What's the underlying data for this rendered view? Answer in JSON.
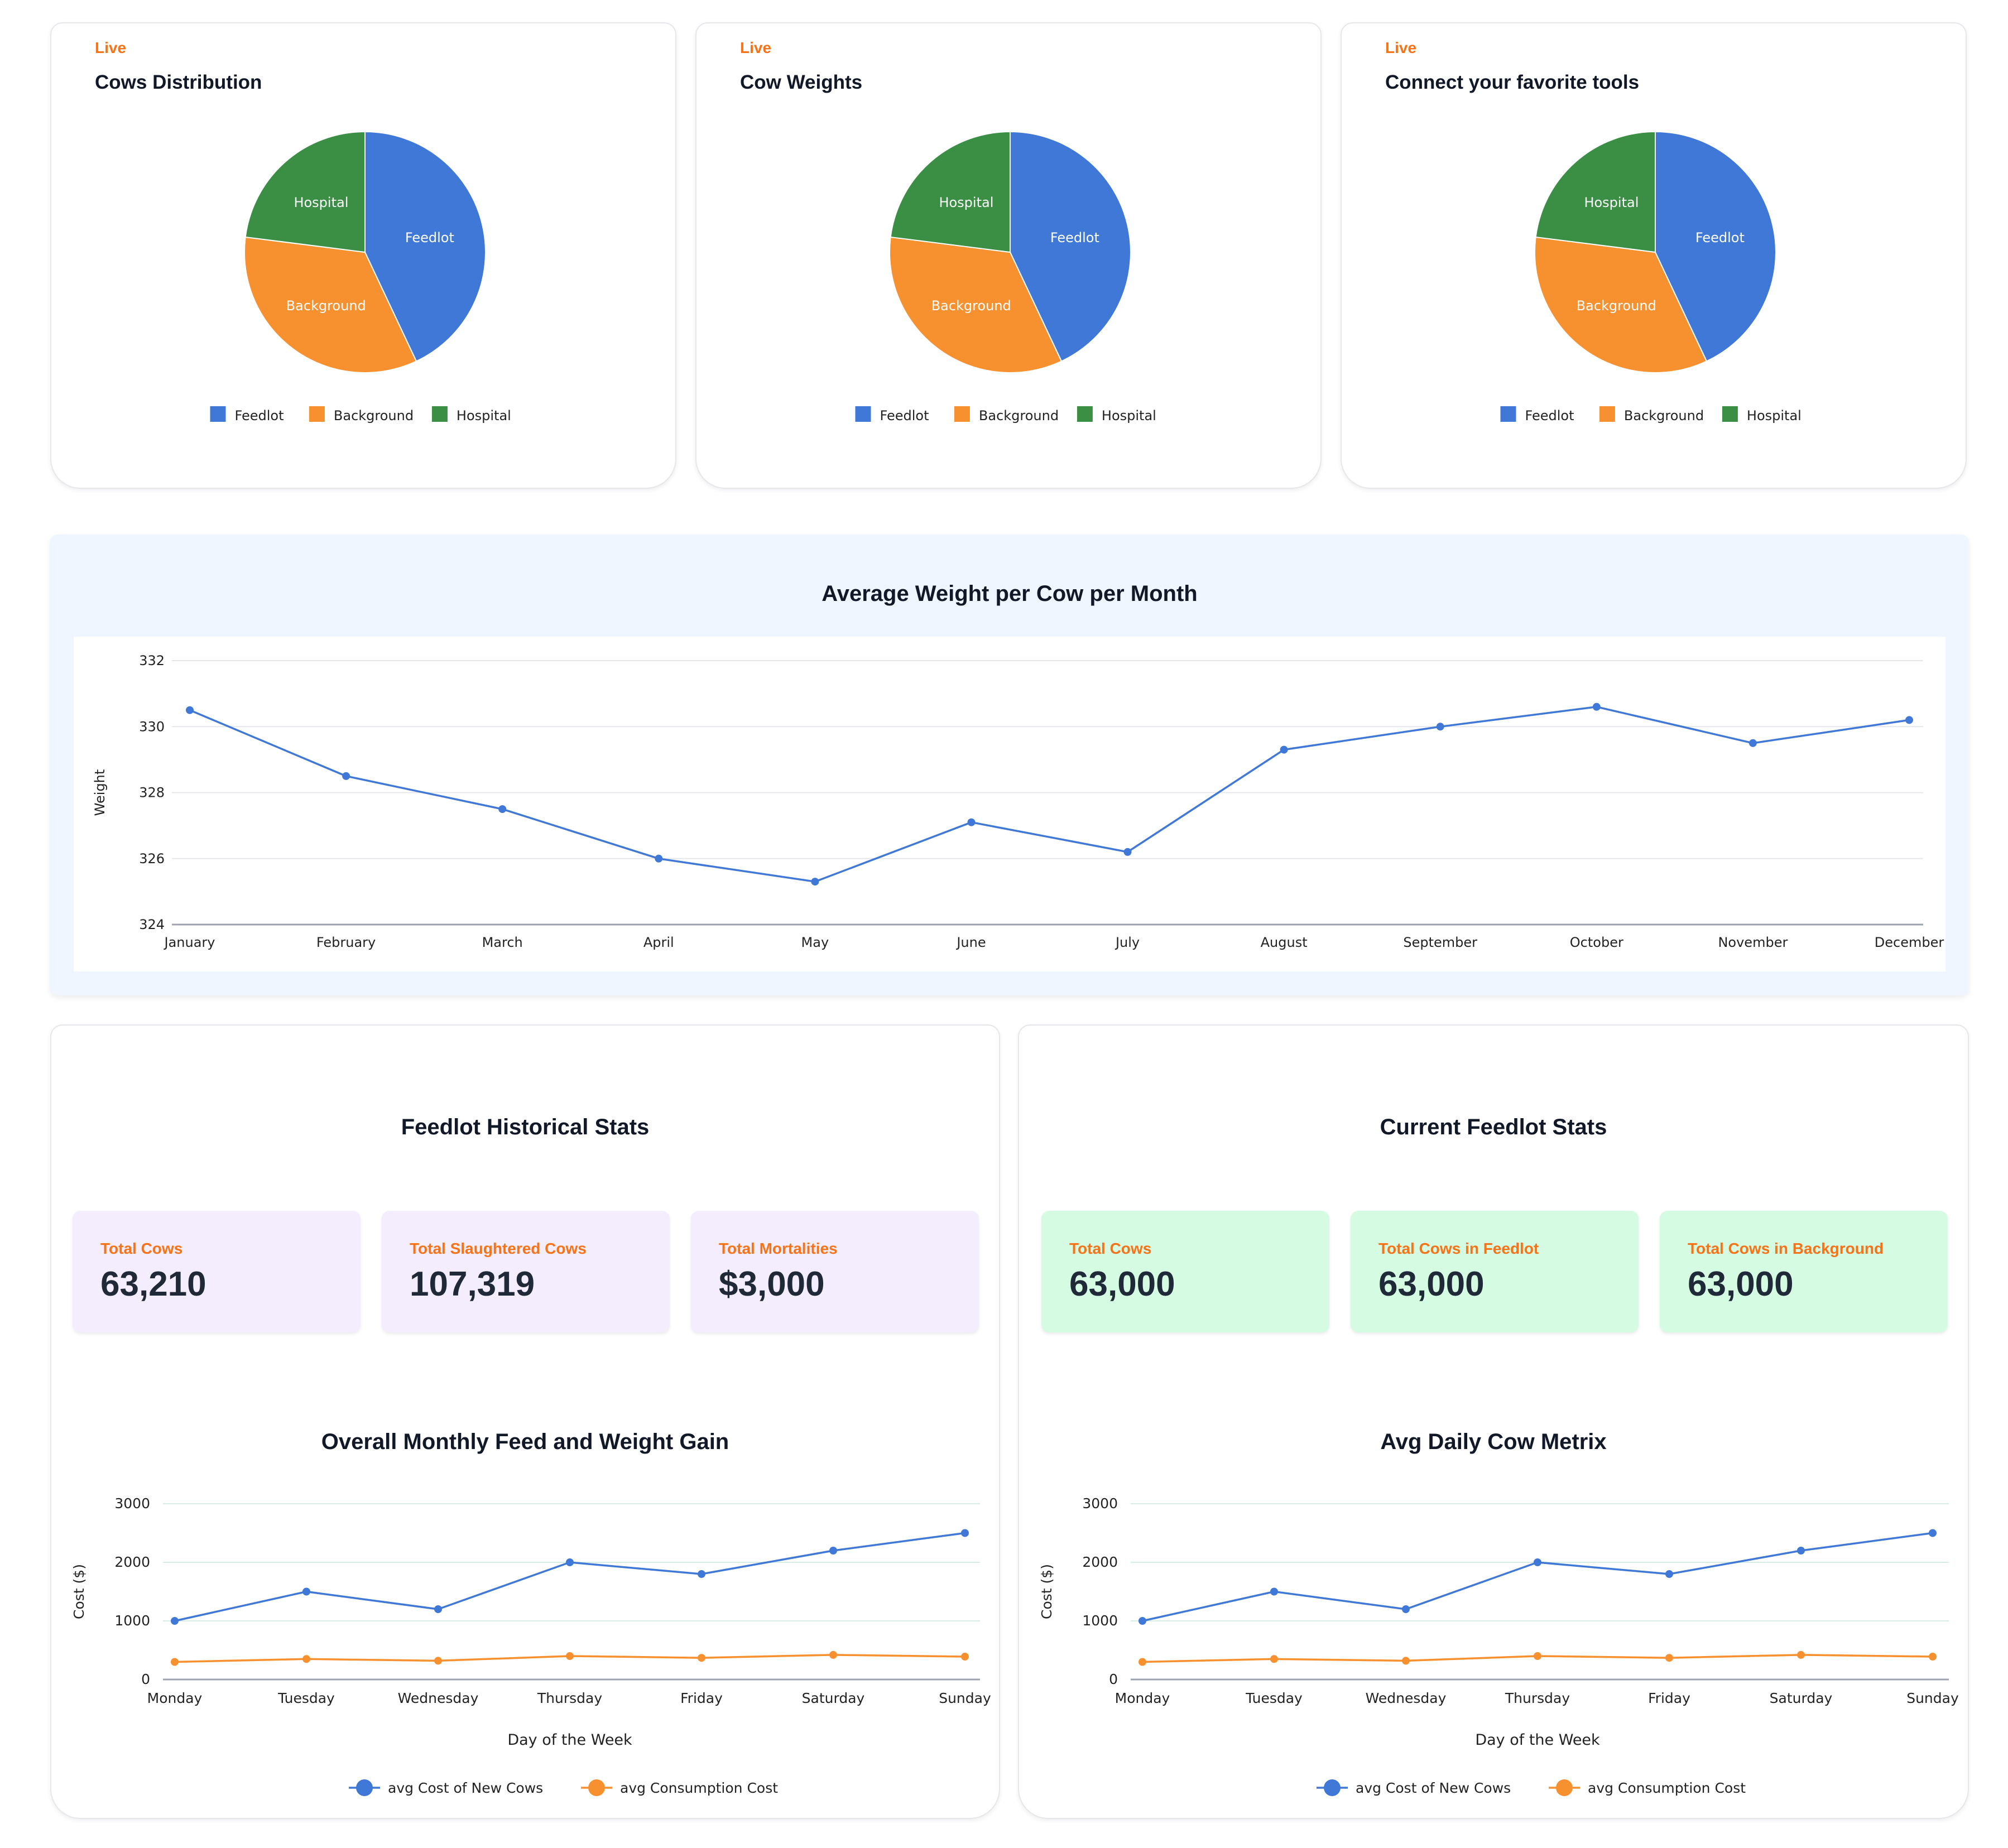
{
  "pie_cards": [
    {
      "live": "Live",
      "title": "Cows Distribution"
    },
    {
      "live": "Live",
      "title": "Cow Weights"
    },
    {
      "live": "Live",
      "title": "Connect your favorite tools"
    }
  ],
  "weight_section": {
    "title": "Average Weight per Cow per Month"
  },
  "historical": {
    "title": "Feedlot Historical Stats",
    "stats": [
      {
        "label": "Total Cows",
        "value": "63,210"
      },
      {
        "label": "Total Slaughtered Cows",
        "value": "107,319"
      },
      {
        "label": "Total Mortalities",
        "value": "$3,000"
      }
    ],
    "chart_title": "Overall Monthly Feed and Weight Gain"
  },
  "current": {
    "title": "Current Feedlot Stats",
    "stats": [
      {
        "label": "Total Cows",
        "value": "63,000"
      },
      {
        "label": "Total Cows in Feedlot",
        "value": "63,000"
      },
      {
        "label": "Total Cows in Background",
        "value": "63,000"
      }
    ],
    "chart_title": "Avg Daily Cow Metrix"
  },
  "colors": {
    "blue": "#3f78d6",
    "orange": "#f7902e",
    "green": "#3a8f45",
    "accent": "#f97316"
  },
  "chart_data": [
    {
      "type": "pie",
      "title": "Cows Distribution",
      "labels": [
        "Feedlot",
        "Background",
        "Hospital"
      ],
      "values": [
        43,
        34,
        23
      ],
      "colors": [
        "#3f78d6",
        "#f7902e",
        "#3a8f45"
      ],
      "legend": "bottom"
    },
    {
      "type": "pie",
      "title": "Cow Weights",
      "labels": [
        "Feedlot",
        "Background",
        "Hospital"
      ],
      "values": [
        43,
        34,
        23
      ],
      "colors": [
        "#3f78d6",
        "#f7902e",
        "#3a8f45"
      ],
      "legend": "bottom"
    },
    {
      "type": "pie",
      "title": "Connect your favorite tools",
      "labels": [
        "Feedlot",
        "Background",
        "Hospital"
      ],
      "values": [
        43,
        34,
        23
      ],
      "colors": [
        "#3f78d6",
        "#f7902e",
        "#3a8f45"
      ],
      "legend": "bottom"
    },
    {
      "type": "line",
      "title": "Average Weight per Cow per Month",
      "categories": [
        "January",
        "February",
        "March",
        "April",
        "May",
        "June",
        "July",
        "August",
        "September",
        "October",
        "November",
        "December"
      ],
      "series": [
        {
          "values": [
            330.5,
            328.5,
            327.5,
            326.0,
            325.3,
            327.1,
            326.2,
            329.3,
            330.0,
            330.6,
            329.5,
            330.2
          ],
          "color": "#3f78d6"
        }
      ],
      "xlabel": "",
      "ylabel": "Weight",
      "ylim": [
        324,
        332
      ],
      "yticks": [
        "324",
        "326",
        "328",
        "330",
        "332"
      ],
      "grid": true
    },
    {
      "type": "line",
      "title": "Overall Monthly Feed and Weight Gain",
      "categories": [
        "Monday",
        "Tuesday",
        "Wednesday",
        "Thursday",
        "Friday",
        "Saturday",
        "Sunday"
      ],
      "series": [
        {
          "name": "avg Cost of New Cows",
          "values": [
            1000,
            1500,
            1200,
            2000,
            1800,
            2200,
            2500
          ],
          "color": "#3f78d6"
        },
        {
          "name": "avg Consumption Cost",
          "values": [
            300,
            350,
            320,
            400,
            370,
            420,
            390
          ],
          "color": "#f7902e"
        }
      ],
      "xlabel": "Day of the Week",
      "ylabel": "Cost ($)",
      "ylim": [
        0,
        3000
      ],
      "yticks": [
        "0",
        "1000",
        "2000",
        "3000"
      ],
      "grid": true,
      "legend": "bottom"
    },
    {
      "type": "line",
      "title": "Avg Daily Cow Metrix",
      "categories": [
        "Monday",
        "Tuesday",
        "Wednesday",
        "Thursday",
        "Friday",
        "Saturday",
        "Sunday"
      ],
      "series": [
        {
          "name": "avg Cost of New Cows",
          "values": [
            1000,
            1500,
            1200,
            2000,
            1800,
            2200,
            2500
          ],
          "color": "#3f78d6"
        },
        {
          "name": "avg Consumption Cost",
          "values": [
            300,
            350,
            320,
            400,
            370,
            420,
            390
          ],
          "color": "#f7902e"
        }
      ],
      "xlabel": "Day of the Week",
      "ylabel": "Cost ($)",
      "ylim": [
        0,
        3000
      ],
      "yticks": [
        "0",
        "1000",
        "2000",
        "3000"
      ],
      "grid": true,
      "legend": "bottom"
    }
  ]
}
